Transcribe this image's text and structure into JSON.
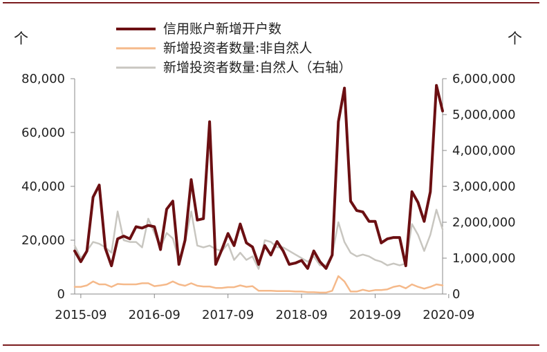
{
  "chart_data": {
    "type": "line",
    "title": "",
    "xlabel": "",
    "y_left": {
      "unit_label": "个",
      "ylim": [
        0,
        80000
      ],
      "ticks": [
        0,
        20000,
        40000,
        60000,
        80000
      ],
      "tick_labels": [
        "0",
        "20,000",
        "40,000",
        "60,000",
        "80,000"
      ]
    },
    "y_right": {
      "unit_label": "个",
      "ylim": [
        0,
        6000000
      ],
      "ticks": [
        0,
        1000000,
        2000000,
        3000000,
        4000000,
        5000000,
        6000000
      ],
      "tick_labels": [
        "0",
        "1,000,000",
        "2,000,000",
        "3,000,000",
        "4,000,000",
        "5,000,000",
        "6,000,000"
      ]
    },
    "x": {
      "start": "2015-08",
      "end": "2020-08",
      "tick_labels": [
        "2015-09",
        "2016-09",
        "2017-09",
        "2018-09",
        "2019-09",
        "2020-09"
      ]
    },
    "grid": false,
    "legend_position": "top-center",
    "series": [
      {
        "name": "信用账户新增开户数",
        "axis": "left",
        "color": "#6b0f12",
        "values": [
          16000,
          12000,
          16000,
          36000,
          40500,
          17000,
          10500,
          20500,
          21500,
          20500,
          25000,
          24500,
          25500,
          25000,
          16500,
          31500,
          34500,
          11000,
          20000,
          42500,
          27500,
          28000,
          64000,
          11000,
          16500,
          22500,
          18000,
          26000,
          19000,
          17500,
          11000,
          18000,
          14500,
          19500,
          16000,
          11000,
          11500,
          12500,
          9500,
          16000,
          12000,
          9500,
          14500,
          64000,
          76500,
          34500,
          31000,
          30500,
          27000,
          27000,
          19000,
          20500,
          21000,
          21000,
          10500,
          38000,
          34000,
          27000,
          38000,
          77500,
          68000
        ]
      },
      {
        "name": "新增投资者数量:非自然人",
        "axis": "right",
        "color": "#f5b98a",
        "values": [
          200000,
          200000,
          240000,
          350000,
          270000,
          270000,
          200000,
          280000,
          270000,
          270000,
          270000,
          300000,
          300000,
          220000,
          240000,
          270000,
          350000,
          270000,
          230000,
          300000,
          230000,
          210000,
          210000,
          170000,
          170000,
          190000,
          190000,
          240000,
          200000,
          220000,
          90000,
          90000,
          90000,
          80000,
          80000,
          80000,
          70000,
          70000,
          50000,
          50000,
          40000,
          40000,
          90000,
          500000,
          350000,
          70000,
          70000,
          120000,
          80000,
          110000,
          110000,
          130000,
          200000,
          230000,
          160000,
          270000,
          200000,
          150000,
          200000,
          270000,
          240000
        ]
      },
      {
        "name": "新增投资者数量:自然人（右轴）",
        "axis": "right",
        "color": "#c8c6c0",
        "values": [
          1350000,
          1000000,
          1200000,
          1450000,
          1400000,
          1300000,
          1150000,
          2300000,
          1500000,
          1450000,
          1450000,
          1300000,
          2100000,
          1700000,
          1300000,
          1700000,
          1550000,
          950000,
          1450000,
          2300000,
          1350000,
          1300000,
          1350000,
          1250000,
          1200000,
          1400000,
          950000,
          1150000,
          950000,
          1050000,
          700000,
          1500000,
          1450000,
          1300000,
          1300000,
          1200000,
          1100000,
          1000000,
          900000,
          1050000,
          800000,
          800000,
          1100000,
          2000000,
          1450000,
          1150000,
          1050000,
          1100000,
          1050000,
          950000,
          900000,
          800000,
          850000,
          800000,
          850000,
          1950000,
          1650000,
          1200000,
          1650000,
          2350000,
          1800000
        ]
      }
    ]
  }
}
